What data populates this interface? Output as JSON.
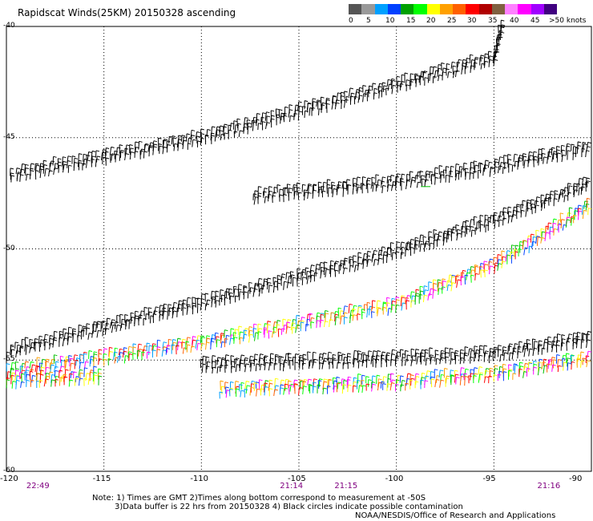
{
  "title": "Rapidscat Winds(25KM) 20150328 ascending",
  "colorbar": {
    "segments": [
      {
        "color": "#555555"
      },
      {
        "color": "#999999"
      },
      {
        "color": "#00a0ff"
      },
      {
        "color": "#0040ff"
      },
      {
        "color": "#00a000"
      },
      {
        "color": "#00ff00"
      },
      {
        "color": "#ffff00"
      },
      {
        "color": "#ffa000"
      },
      {
        "color": "#ff6000"
      },
      {
        "color": "#ff0000"
      },
      {
        "color": "#b00000"
      },
      {
        "color": "#806040"
      },
      {
        "color": "#ff80ff"
      },
      {
        "color": "#ff00ff"
      },
      {
        "color": "#a000ff"
      },
      {
        "color": "#400080"
      }
    ],
    "labels": [
      "0",
      "5",
      "10",
      "15",
      "20",
      "25",
      "30",
      "35",
      "40",
      "45",
      ">50 knots"
    ]
  },
  "axes": {
    "x_ticks": [
      "-120",
      "-115",
      "-110",
      "-105",
      "-100",
      "-95",
      "-90"
    ],
    "y_ticks": [
      "-40",
      "-45",
      "-50",
      "-55",
      "-60"
    ],
    "x_range": [
      -120,
      -90
    ],
    "y_range": [
      -40,
      -60
    ]
  },
  "time_labels": [
    {
      "text": "22:49",
      "lon": -118.4
    },
    {
      "text": "21:14",
      "lon": -105.4
    },
    {
      "text": "21:15",
      "lon": -102.6
    },
    {
      "text": "21:16",
      "lon": -92.2
    }
  ],
  "notes": {
    "line1": "Note: 1) Times are GMT 2)Times along bottom correspond to measurement at -50S",
    "line2": "3)Data buffer is 22 hrs from 20150328 4) Black circles indicate possible contamination",
    "credit": "NOAA/NESDIS/Office of Research and Applications"
  },
  "swaths": [
    {
      "name": "swath-1",
      "points": [
        [
          -120,
          -46.9
        ],
        [
          -110,
          -45.2
        ],
        [
          -100,
          -42.8
        ],
        [
          -95,
          -41.6
        ],
        [
          -94.6,
          -40
        ]
      ],
      "color": "black"
    },
    {
      "name": "swath-2",
      "points": [
        [
          -107.3,
          -47.8
        ],
        [
          -100,
          -47.2
        ],
        [
          -95,
          -46.5
        ],
        [
          -90,
          -45.6
        ]
      ],
      "color": "black"
    },
    {
      "name": "swath-3",
      "points": [
        [
          -120,
          -54.8
        ],
        [
          -110,
          -52.6
        ],
        [
          -100,
          -50.3
        ],
        [
          -95,
          -48.9
        ],
        [
          -90,
          -47.2
        ]
      ],
      "color": "black"
    },
    {
      "name": "swath-4",
      "points": [
        [
          -120,
          -55.7
        ],
        [
          -110,
          -54.4
        ],
        [
          -100,
          -52.7
        ],
        [
          -95,
          -50.9
        ],
        [
          -90,
          -48.2
        ]
      ],
      "color": "mixed"
    },
    {
      "name": "swath-5",
      "points": [
        [
          -110,
          -55.4
        ],
        [
          -100,
          -55.1
        ],
        [
          -95,
          -54.9
        ],
        [
          -90,
          -54.2
        ]
      ],
      "color": "black"
    },
    {
      "name": "swath-6",
      "points": [
        [
          -120,
          -56.1
        ],
        [
          -115,
          -55.9
        ]
      ],
      "color": "mixed"
    },
    {
      "name": "swath-7",
      "points": [
        [
          -109,
          -56.5
        ],
        [
          -100,
          -56.2
        ],
        [
          -95,
          -55.8
        ],
        [
          -90,
          -55.1
        ]
      ],
      "color": "mixed"
    }
  ]
}
